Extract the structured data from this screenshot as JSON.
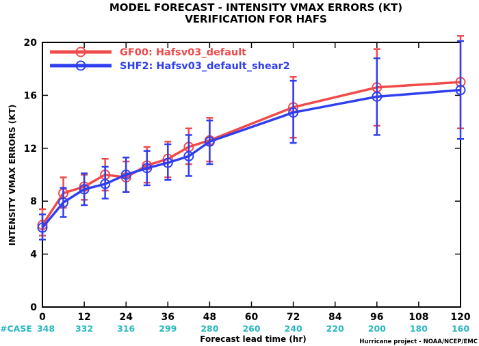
{
  "chart_data": {
    "type": "line",
    "title": "MODEL FORECAST - INTENSITY VMAX ERRORS (KT)",
    "subtitle": "VERIFICATION FOR HAFS",
    "xlabel": "Forecast lead time (hr)",
    "ylabel": "INTENSITY VMAX ERRORS (KT)",
    "xlim": [
      0,
      120
    ],
    "ylim": [
      0,
      20
    ],
    "x_ticks": [
      0,
      12,
      24,
      36,
      48,
      60,
      72,
      84,
      96,
      108,
      120
    ],
    "y_ticks": [
      0,
      4,
      8,
      12,
      16,
      20
    ],
    "grid": false,
    "legend_position": "top-left",
    "case_label": "#CASE",
    "case_counts": [
      {
        "x": 0,
        "n": 348
      },
      {
        "x": 12,
        "n": 332
      },
      {
        "x": 24,
        "n": 316
      },
      {
        "x": 36,
        "n": 299
      },
      {
        "x": 48,
        "n": 280
      },
      {
        "x": 60,
        "n": 260
      },
      {
        "x": 72,
        "n": 240
      },
      {
        "x": 84,
        "n": 220
      },
      {
        "x": 96,
        "n": 200
      },
      {
        "x": 108,
        "n": 180
      },
      {
        "x": 120,
        "n": 160
      }
    ],
    "series": [
      {
        "name": "GF00: Hafsv03_default",
        "color": "#f04a4a",
        "x": [
          0,
          6,
          12,
          18,
          24,
          30,
          36,
          42,
          48,
          72,
          96,
          120
        ],
        "y": [
          6.2,
          8.6,
          9.1,
          10.0,
          9.8,
          10.7,
          11.2,
          12.1,
          12.6,
          15.1,
          16.6,
          17.0
        ],
        "low": [
          5.4,
          7.5,
          8.1,
          8.8,
          8.7,
          9.4,
          9.8,
          10.8,
          11.0,
          12.8,
          13.7,
          13.5
        ],
        "high": [
          7.4,
          9.8,
          10.0,
          11.2,
          11.0,
          12.1,
          12.5,
          13.5,
          14.3,
          17.4,
          19.5,
          20.5
        ]
      },
      {
        "name": "SHF2: Hafsv03_default_shear2",
        "color": "#2f3ff0",
        "x": [
          0,
          6,
          12,
          18,
          24,
          30,
          36,
          42,
          48,
          72,
          96,
          120
        ],
        "y": [
          6.0,
          7.9,
          8.9,
          9.3,
          10.0,
          10.5,
          10.9,
          11.4,
          12.5,
          14.7,
          15.9,
          16.4
        ],
        "low": [
          5.1,
          6.8,
          7.7,
          8.2,
          8.7,
          9.2,
          9.6,
          9.9,
          10.8,
          12.4,
          13.0,
          12.7
        ],
        "high": [
          7.0,
          9.0,
          10.1,
          10.6,
          11.3,
          11.8,
          12.3,
          13.0,
          14.1,
          17.1,
          18.8,
          20.1
        ]
      }
    ]
  },
  "credit": "Hurricane project - NOAA/NCEP/EMC"
}
